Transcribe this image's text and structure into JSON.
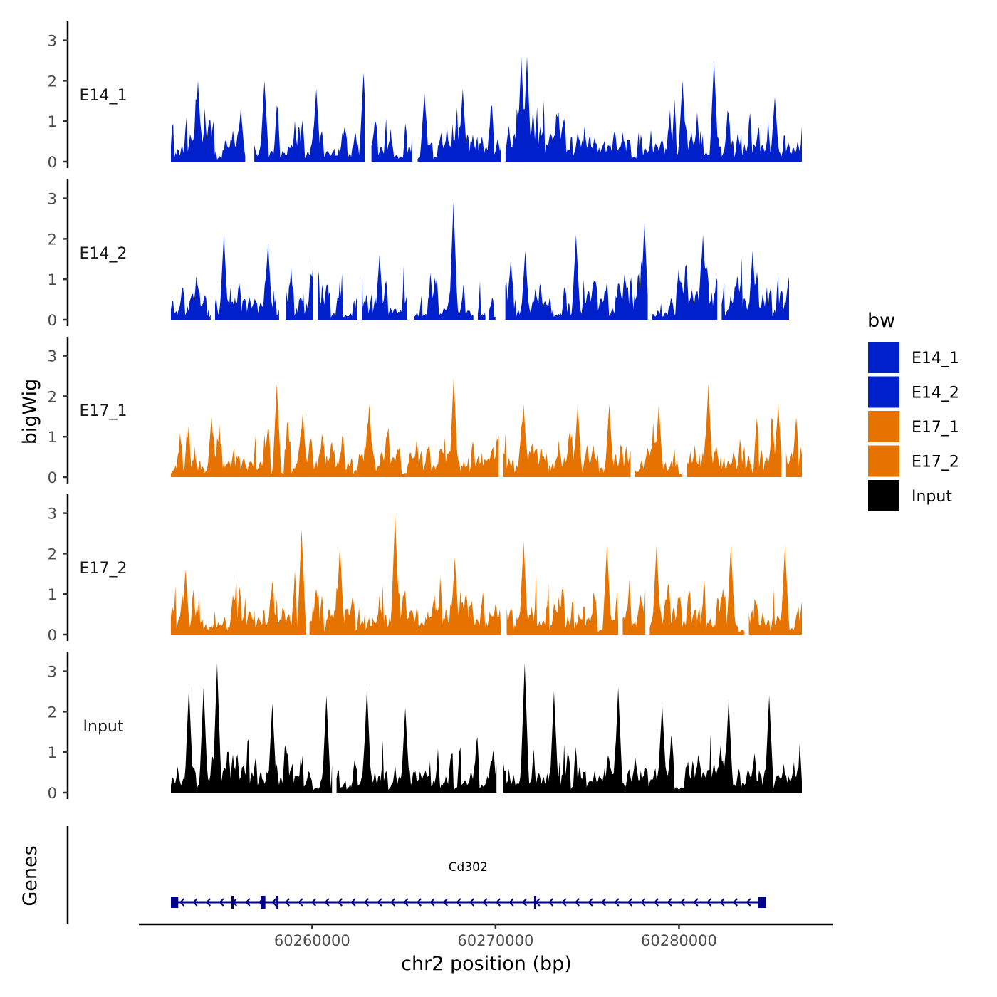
{
  "chart_data": {
    "type": "area",
    "ylabel": "bigWig",
    "xlabel": "chr2 position (bp)",
    "x_range": [
      60252300,
      60286700
    ],
    "ylim": [
      0,
      3.4
    ],
    "y_ticks": [
      0,
      1,
      2,
      3
    ],
    "x_ticks": [
      60260000,
      60270000,
      60280000
    ],
    "x_tick_labels": [
      "60260000",
      "60270000",
      "60280000"
    ],
    "legend": {
      "title": "bw",
      "position": "right",
      "entries": [
        {
          "label": "E14_1",
          "color": "#0020CC"
        },
        {
          "label": "E14_2",
          "color": "#0020CC"
        },
        {
          "label": "E17_1",
          "color": "#E67300"
        },
        {
          "label": "E17_2",
          "color": "#E67300"
        },
        {
          "label": "Input",
          "color": "#000000"
        }
      ]
    },
    "tracks": [
      {
        "name": "E14_1",
        "color": "#0020CC",
        "seed": 11,
        "start": 60252300,
        "end": 60286700,
        "gaps": [
          [
            60256400,
            60256800
          ],
          [
            60262900,
            60263200
          ],
          [
            60265500,
            60265700
          ],
          [
            60270300,
            60270500
          ]
        ],
        "peaks": [
          [
            60253800,
            2.0
          ],
          [
            60256100,
            1.3
          ],
          [
            60257400,
            2.0
          ],
          [
            60260200,
            1.8
          ],
          [
            60262800,
            2.2
          ],
          [
            60266100,
            1.7
          ],
          [
            60268200,
            1.8
          ],
          [
            60271400,
            2.6
          ],
          [
            60271700,
            2.6
          ],
          [
            60280200,
            2.0
          ],
          [
            60281900,
            2.5
          ],
          [
            60285200,
            1.6
          ]
        ]
      },
      {
        "name": "E14_2",
        "color": "#0020CC",
        "seed": 23,
        "start": 60252300,
        "end": 60286000,
        "gaps": [
          [
            60254500,
            60254700
          ],
          [
            60258200,
            60258500
          ],
          [
            60260100,
            60260300
          ],
          [
            60262500,
            60262700
          ],
          [
            60265200,
            60265500
          ],
          [
            60268800,
            60269000
          ],
          [
            60269500,
            60269600
          ],
          [
            60270000,
            60270500
          ],
          [
            60278300,
            60278500
          ],
          [
            60282100,
            60282300
          ]
        ],
        "peaks": [
          [
            60255200,
            2.1
          ],
          [
            60257600,
            1.9
          ],
          [
            60260100,
            2.1
          ],
          [
            60263700,
            1.6
          ],
          [
            60267700,
            2.9
          ],
          [
            60271600,
            1.7
          ],
          [
            60274400,
            2.1
          ],
          [
            60278100,
            2.4
          ],
          [
            60281300,
            2.1
          ],
          [
            60284000,
            1.7
          ]
        ]
      },
      {
        "name": "E17_1",
        "color": "#E67300",
        "seed": 37,
        "start": 60252300,
        "end": 60286700,
        "gaps": [
          [
            60270200,
            60270400
          ],
          [
            60277400,
            60277600
          ],
          [
            60280200,
            60280400
          ],
          [
            60285600,
            60285800
          ]
        ],
        "peaks": [
          [
            60254500,
            1.5
          ],
          [
            60258100,
            2.3
          ],
          [
            60259500,
            1.6
          ],
          [
            60263100,
            1.8
          ],
          [
            60267700,
            2.5
          ],
          [
            60271500,
            1.8
          ],
          [
            60274500,
            1.8
          ],
          [
            60276200,
            1.8
          ],
          [
            60278900,
            1.8
          ],
          [
            60281600,
            2.3
          ],
          [
            60285400,
            1.8
          ]
        ]
      },
      {
        "name": "E17_2",
        "color": "#E67300",
        "seed": 53,
        "start": 60252300,
        "end": 60286700,
        "gaps": [
          [
            60259700,
            60259800
          ],
          [
            60270300,
            60270600
          ],
          [
            60276700,
            60276900
          ],
          [
            60278200,
            60278400
          ],
          [
            60283600,
            60283800
          ]
        ],
        "peaks": [
          [
            60253100,
            1.6
          ],
          [
            60259400,
            2.6
          ],
          [
            60261500,
            2.2
          ],
          [
            60264500,
            3.0
          ],
          [
            60267800,
            1.9
          ],
          [
            60271500,
            2.3
          ],
          [
            60276100,
            2.2
          ],
          [
            60278800,
            2.2
          ],
          [
            60282800,
            2.2
          ],
          [
            60285800,
            2.2
          ]
        ]
      },
      {
        "name": "Input",
        "color": "#000000",
        "seed": 71,
        "start": 60252300,
        "end": 60286700,
        "gaps": [
          [
            60261100,
            60261300
          ],
          [
            60270100,
            60270400
          ]
        ],
        "peaks": [
          [
            60253300,
            2.6
          ],
          [
            60254100,
            2.6
          ],
          [
            60254800,
            3.2
          ],
          [
            60257800,
            2.2
          ],
          [
            60260800,
            2.4
          ],
          [
            60263000,
            2.6
          ],
          [
            60265100,
            2.1
          ],
          [
            60271600,
            3.2
          ],
          [
            60273200,
            2.5
          ],
          [
            60276700,
            2.6
          ],
          [
            60279100,
            2.2
          ],
          [
            60282700,
            2.3
          ],
          [
            60284900,
            2.4
          ]
        ]
      }
    ],
    "genes_track": {
      "label": "Genes",
      "genes": [
        {
          "name": "Cd302",
          "start": 60252350,
          "end": 60284650,
          "strand": "-",
          "color": "#00008B",
          "exons": [
            [
              60252300,
              60252700
            ],
            [
              60255600,
              60255720
            ],
            [
              60257200,
              60257450
            ],
            [
              60258050,
              60258150
            ],
            [
              60272100,
              60272200
            ],
            [
              60284300,
              60284750
            ]
          ]
        }
      ]
    }
  }
}
